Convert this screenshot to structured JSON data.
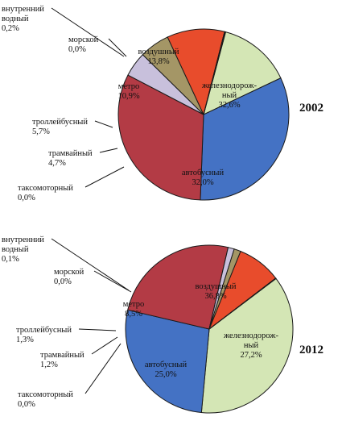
{
  "chart_data": [
    {
      "type": "pie",
      "title": "2002",
      "colors": {
        "воздушный": "#d4e6b5",
        "железнодорожный": "#4472c4",
        "автобусный": "#b33b45",
        "таксомоторный": "#ffffff",
        "трамвайный": "#c8c0dc",
        "троллейбусный": "#a49666",
        "метро": "#e84c2c",
        "морской": "#3a5a9a",
        "внутренний водный": "#222222"
      },
      "slices": [
        {
          "name": "воздушный",
          "text": [
            "воздушный",
            "13,8%"
          ],
          "value": 13.8
        },
        {
          "name": "железнодорожный",
          "text": [
            "железнодорож-",
            "ный",
            "32,6%"
          ],
          "value": 32.6
        },
        {
          "name": "автобусный",
          "text": [
            "автобусный",
            "32,0%"
          ],
          "value": 32.0
        },
        {
          "name": "таксомоторный",
          "text": [
            "таксомоторный",
            "0,0%"
          ],
          "value": 0.0
        },
        {
          "name": "трамвайный",
          "text": [
            "трамвайный",
            "4,7%"
          ],
          "value": 4.7
        },
        {
          "name": "троллейбусный",
          "text": [
            "троллейбусный",
            "5,7%"
          ],
          "value": 5.7
        },
        {
          "name": "метро",
          "text": [
            "метро",
            "10,9%"
          ],
          "value": 10.9
        },
        {
          "name": "морской",
          "text": [
            "морской",
            "0,0%"
          ],
          "value": 0.0
        },
        {
          "name": "внутренний водный",
          "text": [
            "внутренний",
            "водный",
            "0,2%"
          ],
          "value": 0.2
        }
      ]
    },
    {
      "type": "pie",
      "title": "2012",
      "colors": {
        "воздушный": "#d4e6b5",
        "железнодорожный": "#4472c4",
        "автобусный": "#b33b45",
        "таксомоторный": "#ffffff",
        "трамвайный": "#c8c0dc",
        "троллейбусный": "#a49666",
        "метро": "#e84c2c",
        "морской": "#3a5a9a",
        "внутренний водный": "#222222"
      },
      "slices": [
        {
          "name": "воздушный",
          "text": [
            "воздушный",
            "36,8%"
          ],
          "value": 36.8
        },
        {
          "name": "железнодорожный",
          "text": [
            "железнодорож-",
            "ный",
            "27,2%"
          ],
          "value": 27.2
        },
        {
          "name": "автобусный",
          "text": [
            "автобусный",
            "25,0%"
          ],
          "value": 25.0
        },
        {
          "name": "таксомоторный",
          "text": [
            "таксомоторный",
            "0,0%"
          ],
          "value": 0.0
        },
        {
          "name": "трамвайный",
          "text": [
            "трамвайный",
            "1,2%"
          ],
          "value": 1.2
        },
        {
          "name": "троллейбусный",
          "text": [
            "троллейбусный",
            "1,3%"
          ],
          "value": 1.3
        },
        {
          "name": "метро",
          "text": [
            "метро",
            "8,5%"
          ],
          "value": 8.5
        },
        {
          "name": "морской",
          "text": [
            "морской",
            "0,0%"
          ],
          "value": 0.0
        },
        {
          "name": "внутренний водный",
          "text": [
            "внутренний",
            "водный",
            "0,1%"
          ],
          "value": 0.1
        }
      ]
    }
  ]
}
